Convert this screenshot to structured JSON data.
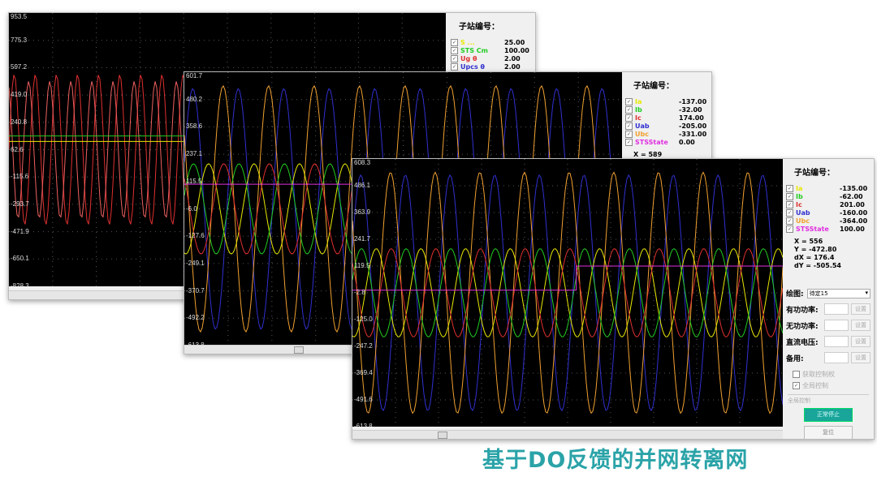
{
  "windows": [
    {
      "panel_title": "子站编号：",
      "y_ticks": [
        "953.5",
        "775.3",
        "597.2",
        "419.0",
        "240.8",
        "62.6",
        "-115.6",
        "-293.7",
        "-471.9",
        "-650.1",
        "-828.3"
      ],
      "channels": [
        {
          "name": "S ...",
          "value": "25.00",
          "color": "#e8e800"
        },
        {
          "name": "STS Cm",
          "value": "100.00",
          "color": "#22cc22"
        },
        {
          "name": "Ug θ",
          "value": "2.00",
          "color": "#e03030"
        },
        {
          "name": "Upcs θ",
          "value": "2.00",
          "color": "#3030d0"
        }
      ]
    },
    {
      "panel_title": "子站编号：",
      "y_ticks": [
        "601.7",
        "480.2",
        "358.6",
        "237.1",
        "115.5",
        "-6.0",
        "-127.6",
        "-249.1",
        "-370.7",
        "-492.2",
        "-613.8"
      ],
      "channels": [
        {
          "name": "Ia",
          "value": "-137.00",
          "color": "#e8e800"
        },
        {
          "name": "Ib",
          "value": "-32.00",
          "color": "#22cc22"
        },
        {
          "name": "Ic",
          "value": "174.00",
          "color": "#e03030"
        },
        {
          "name": "Uab",
          "value": "-205.00",
          "color": "#3030d0"
        },
        {
          "name": "Ubc",
          "value": "-331.00",
          "color": "#f0a030"
        },
        {
          "name": "STSState",
          "value": "0.00",
          "color": "#e030e0"
        }
      ],
      "cursor": {
        "x": "X  =  589"
      }
    },
    {
      "panel_title": "子站编号：",
      "y_ticks": [
        "608.3",
        "486.1",
        "363.9",
        "241.7",
        "119.5",
        "-2.8",
        "-125.0",
        "-247.2",
        "-369.4",
        "-491.6",
        "-613.8"
      ],
      "channels": [
        {
          "name": "Ia",
          "value": "-135.00",
          "color": "#e8e800"
        },
        {
          "name": "Ib",
          "value": "-62.00",
          "color": "#22cc22"
        },
        {
          "name": "Ic",
          "value": "201.00",
          "color": "#e03030"
        },
        {
          "name": "Uab",
          "value": "-160.00",
          "color": "#3030d0"
        },
        {
          "name": "Ubc",
          "value": "-364.00",
          "color": "#f0a030"
        },
        {
          "name": "STSState",
          "value": "100.00",
          "color": "#e030e0"
        }
      ],
      "cursor": {
        "x": "X  =  556",
        "y": "Y  =  -472.80",
        "dx": "dX = 176.4",
        "dy": "dY = -505.54"
      },
      "controls": {
        "plot_label": "绘图:",
        "plot_select": "待定15",
        "active_power": "有功功率:",
        "reactive_power": "无功功率:",
        "dc_voltage": "直流电压:",
        "spare": "备用:",
        "set": "设置",
        "get_control": "获取控制权",
        "global_control": "全局控制",
        "group_label": "全局控制",
        "stop_button": "正常停止",
        "reset_button": "复位"
      }
    }
  ],
  "caption": "基于DO反馈的并网转离网"
}
